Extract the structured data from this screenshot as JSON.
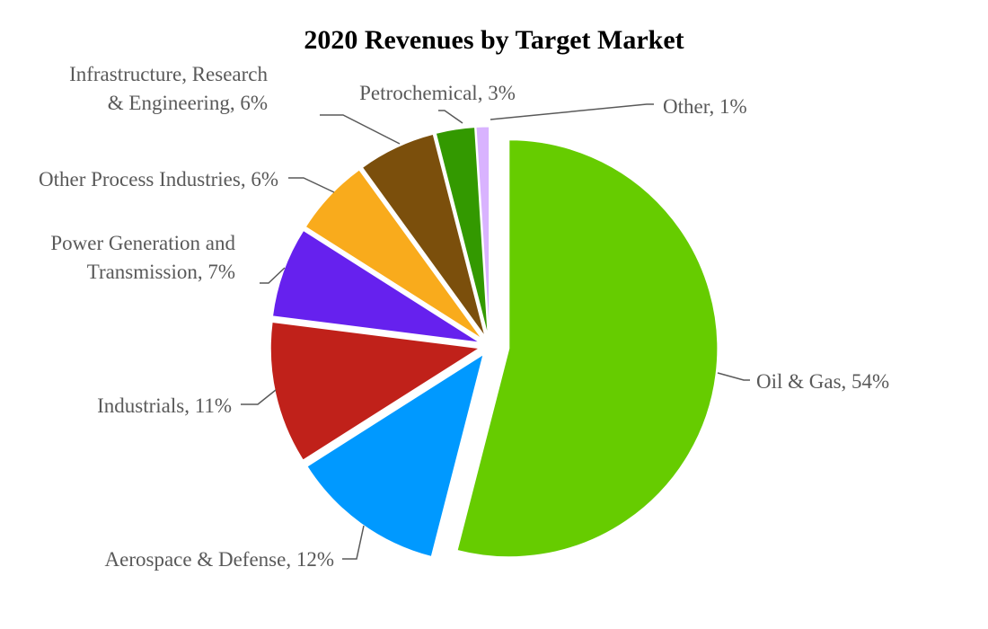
{
  "chart_data": {
    "type": "pie",
    "title": "2020 Revenues by Target Market",
    "slices": [
      {
        "label": "Oil & Gas",
        "value": 54,
        "text": [
          "Oil & Gas, 54%"
        ],
        "color": "#66cc00"
      },
      {
        "label": "Aerospace & Defense",
        "value": 12,
        "text": [
          "Aerospace & Defense, 12%"
        ],
        "color": "#0099ff"
      },
      {
        "label": "Industrials",
        "value": 11,
        "text": [
          "Industrials, 11%"
        ],
        "color": "#c0211a"
      },
      {
        "label": "Power Generation and Transmission",
        "value": 7,
        "text": [
          "Power Generation and",
          "Transmission, 7%"
        ],
        "color": "#6621ee"
      },
      {
        "label": "Other Process Industries",
        "value": 6,
        "text": [
          "Other Process Industries, 6%"
        ],
        "color": "#f9ab1c"
      },
      {
        "label": "Infrastructure, Research & Engineering",
        "value": 6,
        "text": [
          "Infrastructure, Research",
          "& Engineering, 6%"
        ],
        "color": "#7b4f0c"
      },
      {
        "label": "Petrochemical",
        "value": 3,
        "text": [
          "Petrochemical, 3%"
        ],
        "color": "#339900"
      },
      {
        "label": "Other",
        "value": 1,
        "text": [
          "Other, 1%"
        ],
        "color": "#d9b3ff"
      }
    ]
  }
}
